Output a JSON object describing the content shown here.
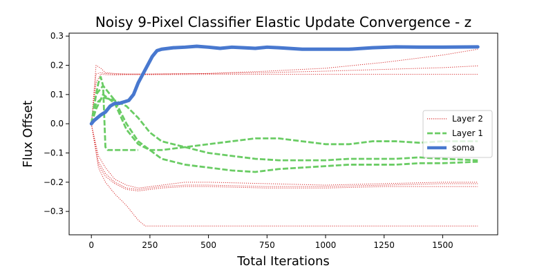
{
  "chart_data": {
    "type": "line",
    "title": "Noisy 9-Pixel Classifier Elastic Update Convergence - z",
    "xlabel": "Total Iterations",
    "ylabel": "Flux Offset",
    "xlim": [
      -95,
      1735
    ],
    "ylim": [
      -0.38,
      0.31
    ],
    "xticks": [
      0,
      250,
      500,
      750,
      1000,
      1250,
      1500
    ],
    "yticks": [
      -0.3,
      -0.2,
      -0.1,
      0.0,
      0.1,
      0.2,
      0.3
    ],
    "xtick_labels": [
      "0",
      "250",
      "500",
      "750",
      "1000",
      "1250",
      "1500"
    ],
    "ytick_labels": [
      "−0.3",
      "−0.2",
      "−0.1",
      "0.0",
      "0.1",
      "0.2",
      "0.3"
    ],
    "grid": false,
    "legend_position": "center-right",
    "legend": [
      {
        "label": "Layer 2",
        "color": "#d62728",
        "style": "dotted"
      },
      {
        "label": "Layer 1",
        "color": "#6acc64",
        "style": "dashed"
      },
      {
        "label": "soma",
        "color": "#4878cf",
        "style": "solid"
      }
    ],
    "series": [
      {
        "name": "Layer 2",
        "color": "#d62728",
        "style": "dotted",
        "lines": [
          {
            "x": [
              0,
              20,
              40,
              60,
              100,
              150,
              250,
              500,
              750,
              1000,
              1250,
              1500,
              1650
            ],
            "y": [
              0,
              0.2,
              0.19,
              0.175,
              0.172,
              0.17,
              0.17,
              0.172,
              0.18,
              0.19,
              0.21,
              0.235,
              0.255
            ]
          },
          {
            "x": [
              0,
              20,
              40,
              60,
              100,
              150,
              250,
              500,
              750,
              1000,
              1250,
              1500,
              1650
            ],
            "y": [
              0,
              0.17,
              0.175,
              0.172,
              0.17,
              0.17,
              0.17,
              0.172,
              0.175,
              0.18,
              0.186,
              0.192,
              0.198
            ]
          },
          {
            "x": [
              0,
              20,
              40,
              60,
              100,
              150,
              250,
              500,
              750,
              1000,
              1250,
              1500,
              1650
            ],
            "y": [
              0,
              0.14,
              0.17,
              0.168,
              0.167,
              0.168,
              0.168,
              0.169,
              0.169,
              0.169,
              0.169,
              0.169,
              0.169
            ]
          },
          {
            "x": [
              0,
              30,
              60,
              100,
              150,
              200,
              250,
              300,
              400,
              500,
              750,
              1000,
              1250,
              1500,
              1650
            ],
            "y": [
              0,
              -0.11,
              -0.15,
              -0.19,
              -0.21,
              -0.22,
              -0.215,
              -0.21,
              -0.2,
              -0.2,
              -0.205,
              -0.21,
              -0.205,
              -0.2,
              -0.2
            ]
          },
          {
            "x": [
              0,
              30,
              60,
              100,
              150,
              200,
              250,
              300,
              400,
              500,
              750,
              1000,
              1250,
              1500,
              1650
            ],
            "y": [
              0,
              -0.13,
              -0.17,
              -0.2,
              -0.22,
              -0.225,
              -0.22,
              -0.215,
              -0.21,
              -0.21,
              -0.215,
              -0.215,
              -0.21,
              -0.205,
              -0.205
            ]
          },
          {
            "x": [
              0,
              30,
              60,
              100,
              150,
              200,
              250,
              300,
              400,
              500,
              750,
              1000,
              1250,
              1500,
              1650
            ],
            "y": [
              0,
              -0.14,
              -0.18,
              -0.205,
              -0.225,
              -0.23,
              -0.225,
              -0.22,
              -0.215,
              -0.215,
              -0.22,
              -0.22,
              -0.215,
              -0.215,
              -0.215
            ]
          },
          {
            "x": [
              0,
              30,
              60,
              100,
              150,
              200,
              230,
              250,
              500,
              750,
              1000,
              1250,
              1500,
              1650
            ],
            "y": [
              0,
              -0.15,
              -0.2,
              -0.24,
              -0.28,
              -0.33,
              -0.35,
              -0.35,
              -0.35,
              -0.35,
              -0.35,
              -0.35,
              -0.35,
              -0.35
            ]
          }
        ]
      },
      {
        "name": "Layer 1",
        "color": "#6acc64",
        "style": "dashed",
        "lines": [
          {
            "x": [
              0,
              10,
              20,
              30,
              40,
              50,
              60,
              70,
              80,
              100,
              150,
              200
            ],
            "y": [
              0,
              0.05,
              0.1,
              0.14,
              0.16,
              0.13,
              -0.08,
              -0.09,
              -0.09,
              -0.09,
              -0.09,
              -0.09
            ]
          },
          {
            "x": [
              0,
              20,
              50,
              100,
              150,
              200,
              250,
              300,
              400,
              500,
              600,
              700,
              800,
              900,
              1000,
              1100,
              1200,
              1300,
              1400,
              1500,
              1650
            ],
            "y": [
              0,
              0.1,
              0.13,
              0.08,
              0.0,
              -0.06,
              -0.09,
              -0.12,
              -0.14,
              -0.15,
              -0.16,
              -0.165,
              -0.155,
              -0.15,
              -0.145,
              -0.14,
              -0.14,
              -0.14,
              -0.135,
              -0.135,
              -0.13
            ]
          },
          {
            "x": [
              0,
              20,
              50,
              100,
              150,
              200,
              250,
              300,
              400,
              500,
              600,
              700,
              800,
              900,
              1000,
              1100,
              1200,
              1300,
              1400,
              1500,
              1650
            ],
            "y": [
              0,
              0.07,
              0.09,
              0.08,
              0.06,
              0.02,
              -0.03,
              -0.06,
              -0.08,
              -0.1,
              -0.11,
              -0.12,
              -0.125,
              -0.125,
              -0.125,
              -0.12,
              -0.12,
              -0.12,
              -0.115,
              -0.12,
              -0.125
            ]
          },
          {
            "x": [
              0,
              20,
              50,
              100,
              150,
              200,
              250,
              300,
              400,
              500,
              600,
              700,
              800,
              900,
              1000,
              1100,
              1200,
              1300,
              1400,
              1500,
              1650
            ],
            "y": [
              0,
              0.05,
              0.1,
              0.07,
              -0.02,
              -0.07,
              -0.09,
              -0.09,
              -0.08,
              -0.07,
              -0.06,
              -0.05,
              -0.05,
              -0.06,
              -0.07,
              -0.07,
              -0.06,
              -0.06,
              -0.065,
              -0.06,
              -0.06
            ]
          }
        ]
      },
      {
        "name": "soma",
        "color": "#4878cf",
        "style": "solid",
        "lines": [
          {
            "x": [
              0,
              10,
              25,
              40,
              60,
              80,
              100,
              120,
              140,
              160,
              180,
              200,
              220,
              240,
              260,
              280,
              300,
              350,
              400,
              450,
              500,
              550,
              600,
              650,
              700,
              750,
              800,
              900,
              1000,
              1100,
              1200,
              1300,
              1400,
              1500,
              1650
            ],
            "y": [
              0,
              0.01,
              0.02,
              0.03,
              0.04,
              0.06,
              0.07,
              0.07,
              0.075,
              0.08,
              0.1,
              0.14,
              0.17,
              0.2,
              0.23,
              0.25,
              0.255,
              0.26,
              0.262,
              0.265,
              0.262,
              0.258,
              0.262,
              0.26,
              0.258,
              0.262,
              0.26,
              0.255,
              0.255,
              0.255,
              0.26,
              0.263,
              0.262,
              0.262,
              0.263
            ]
          }
        ]
      }
    ]
  }
}
